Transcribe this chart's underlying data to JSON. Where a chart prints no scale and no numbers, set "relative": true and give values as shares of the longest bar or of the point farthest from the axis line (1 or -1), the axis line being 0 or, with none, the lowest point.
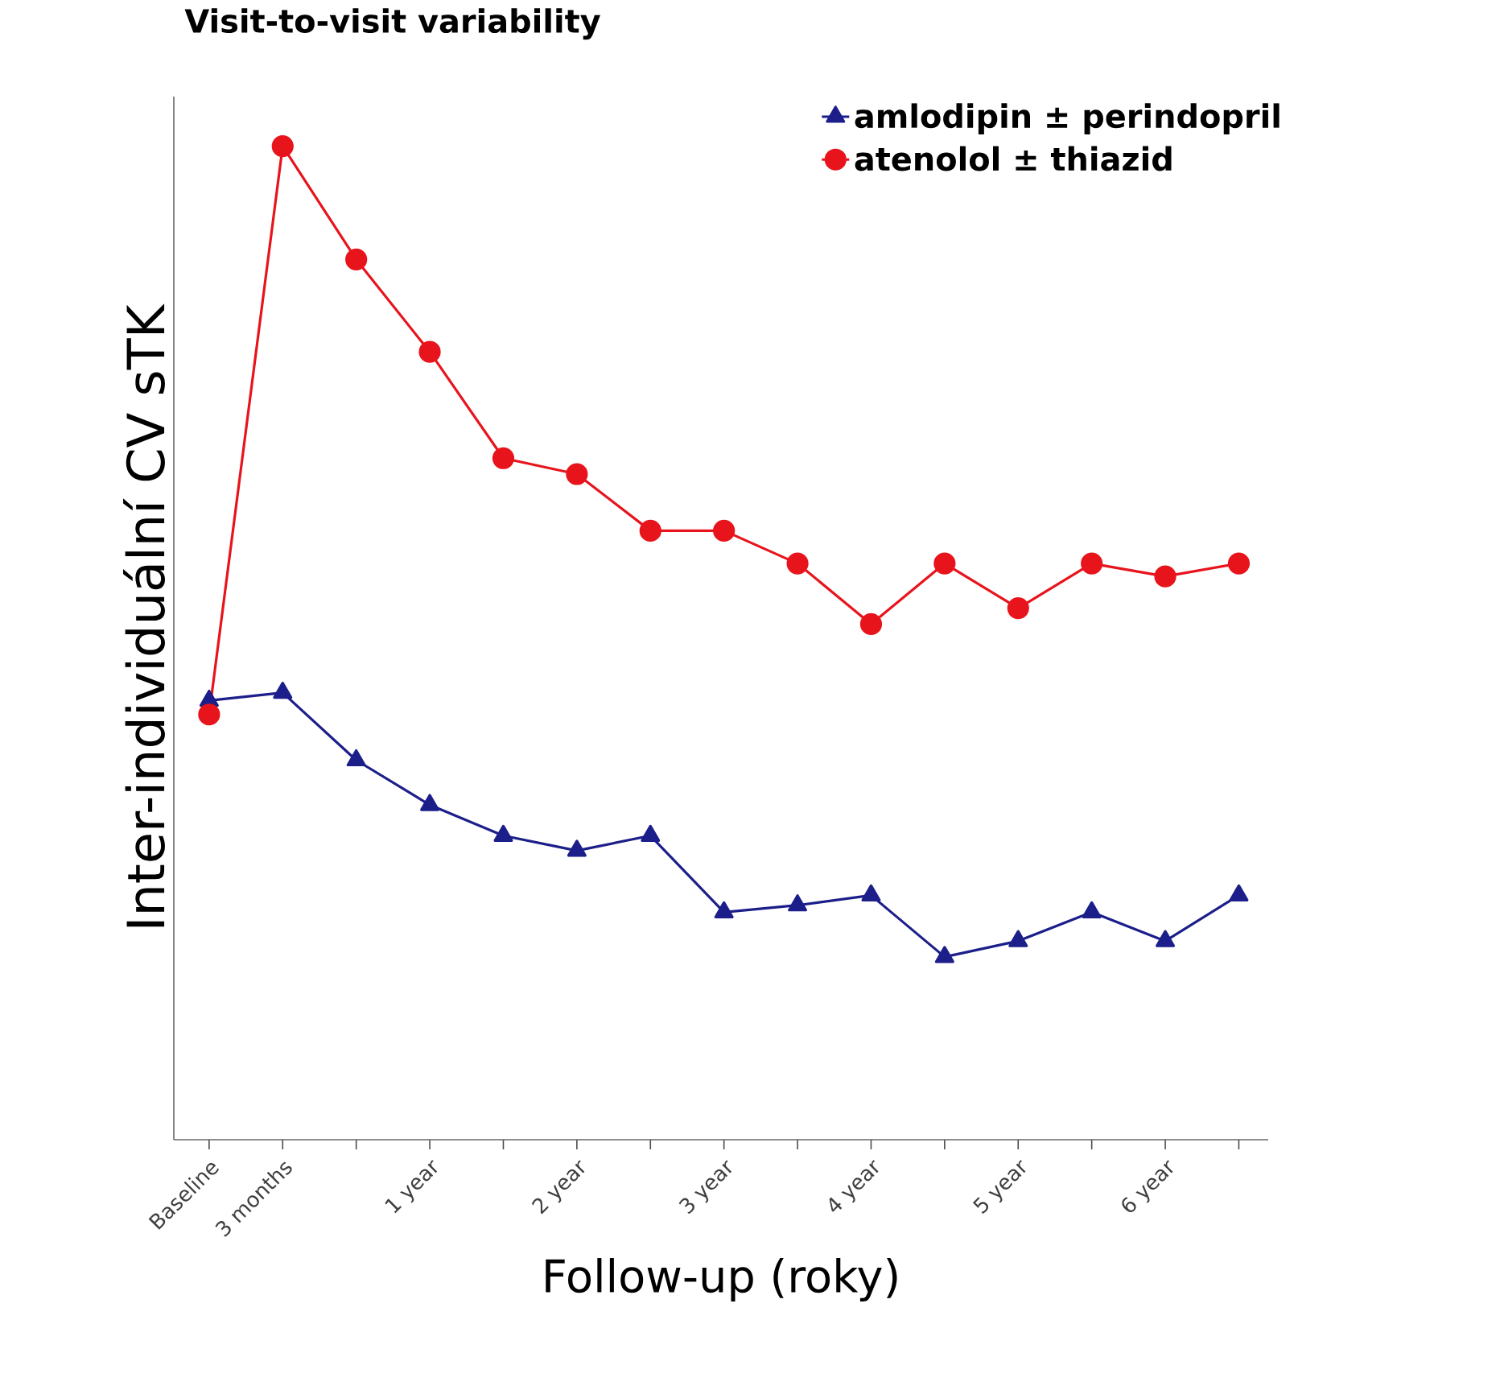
{
  "chart_data": {
    "type": "line",
    "title": "Visit-to-visit variability",
    "xlabel": "Follow-up (roky)",
    "ylabel": "Inter-individuální CV sTK",
    "relative": true,
    "legend": "top right",
    "grid": false,
    "line_style": "solid",
    "categories": [
      "Baseline",
      "3 months",
      null,
      "1 year",
      null,
      "2 year",
      null,
      "3 year",
      null,
      "4 year",
      null,
      "5 year",
      null,
      "6 year",
      null
    ],
    "series": [
      {
        "name": "amlodipin ± perindopril",
        "color": "#1c1f8a",
        "marker": "triangle",
        "values": [
          0.442,
          0.45,
          0.382,
          0.337,
          0.306,
          0.291,
          0.306,
          0.229,
          0.236,
          0.246,
          0.184,
          0.2,
          0.229,
          0.2,
          0.246
        ]
      },
      {
        "name": "atenolol ± thiazid",
        "color": "#e8141c",
        "marker": "circle",
        "values": [
          0.428,
          1,
          0.886,
          0.793,
          0.686,
          0.67,
          0.613,
          0.613,
          0.58,
          0.519,
          0.58,
          0.535,
          0.58,
          0.567,
          0.58
        ]
      }
    ]
  }
}
